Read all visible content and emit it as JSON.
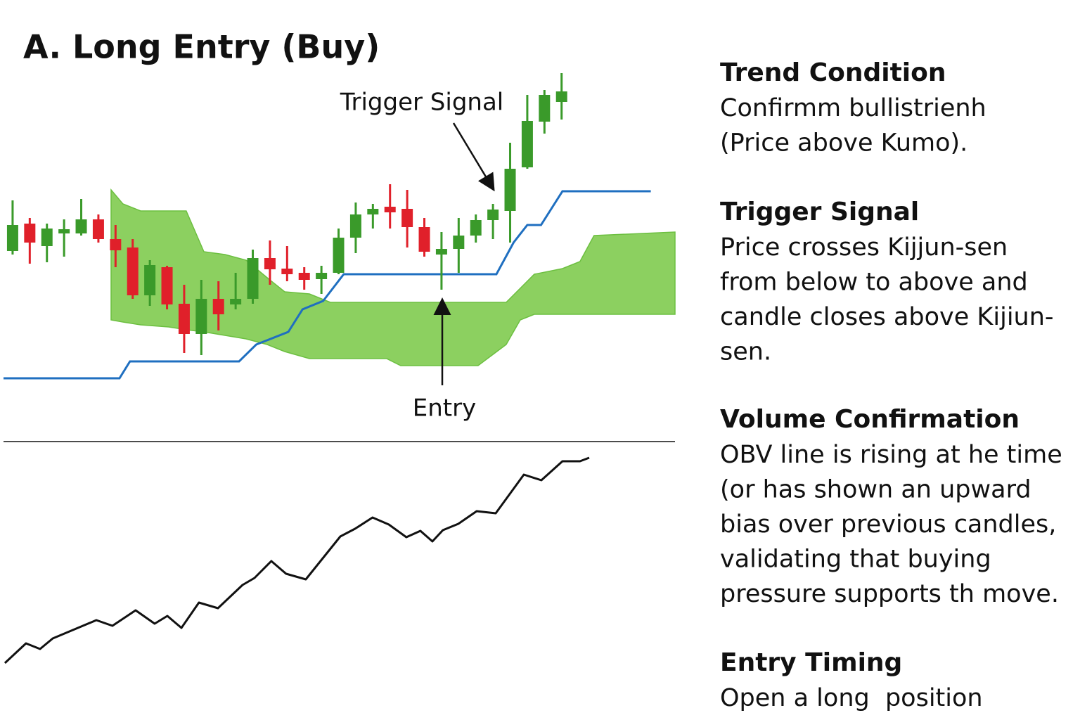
{
  "title": "A. Long Entry (Buy)",
  "chart_data": [
    {
      "type": "candlestick",
      "annotations": [
        "Trigger Signal",
        "Entry"
      ],
      "xlim": [
        -0.53,
        38.61
      ],
      "ylim": [
        0,
        480
      ],
      "up_color": "#3a9a2a",
      "down_color": "#e0202a",
      "x": [
        0,
        1,
        2,
        3,
        4,
        5,
        6,
        7,
        8,
        9,
        10,
        11,
        12,
        13,
        14,
        15,
        16,
        17,
        18,
        19,
        20,
        21,
        22,
        23,
        24,
        25,
        26,
        27,
        28,
        29,
        30,
        31,
        32
      ],
      "open": [
        203,
        242,
        210,
        228,
        228,
        248,
        220,
        208,
        140,
        180,
        128,
        85,
        135,
        127,
        135,
        193,
        178,
        172,
        163,
        172,
        222,
        255,
        266,
        263,
        237,
        198,
        206,
        225,
        247,
        260,
        322,
        387,
        415
      ],
      "high": [
        275,
        250,
        242,
        248,
        277,
        255,
        240,
        220,
        190,
        182,
        155,
        162,
        160,
        172,
        205,
        218,
        210,
        180,
        182,
        235,
        272,
        270,
        298,
        290,
        250,
        230,
        250,
        255,
        270,
        357,
        425,
        432,
        456
      ],
      "low": [
        198,
        185,
        187,
        195,
        225,
        215,
        180,
        135,
        125,
        120,
        58,
        55,
        90,
        120,
        128,
        155,
        160,
        148,
        142,
        170,
        200,
        235,
        235,
        208,
        195,
        148,
        172,
        215,
        220,
        215,
        320,
        370,
        390
      ],
      "close": [
        240,
        215,
        235,
        234,
        248,
        220,
        204,
        140,
        183,
        127,
        85,
        135,
        113,
        135,
        193,
        177,
        170,
        162,
        172,
        222,
        255,
        263,
        258,
        237,
        202,
        206,
        225,
        247,
        262,
        320,
        388,
        425,
        430
      ],
      "kijun": {
        "color": "#1f6fc0",
        "x": [
          -0.53,
          6.23,
          6.84,
          13.2,
          14.2,
          16.07,
          16.9,
          18.1,
          19.3,
          28.2,
          29.2,
          30.0,
          30.8,
          32.05,
          37.2
        ],
        "values": [
          22,
          22,
          46,
          46,
          70,
          88,
          120,
          132,
          170,
          170,
          215,
          240,
          240,
          288,
          288
        ]
      },
      "cloud": {
        "color": "#8cd060",
        "x": [
          5.74,
          6.43,
          7.46,
          9.1,
          10.12,
          11.15,
          12.38,
          13.61,
          14.84,
          15.86,
          17.3,
          18.52,
          21.8,
          22.62,
          27.13,
          27.95,
          28.77,
          29.59,
          30.41,
          32.05,
          33.07,
          33.89,
          38.61
        ],
        "upper": [
          290,
          270,
          260,
          260,
          260,
          202,
          198,
          190,
          165,
          145,
          142,
          130,
          130,
          130,
          130,
          130,
          130,
          150,
          170,
          178,
          188,
          225,
          230
        ],
        "lower": [
          105,
          102,
          98,
          95,
          91,
          88,
          83,
          78,
          70,
          60,
          50,
          50,
          50,
          40,
          40,
          55,
          70,
          105,
          113,
          113,
          113,
          113,
          113
        ]
      }
    },
    {
      "type": "line",
      "color": "#111111",
      "xlim": [
        -0.53,
        38.61
      ],
      "ylim": [
        0,
        320
      ],
      "x": [
        -0.45,
        0.78,
        1.6,
        2.34,
        4.88,
        5.82,
        7.17,
        8.28,
        9.02,
        9.84,
        10.86,
        11.97,
        13.4,
        14.1,
        15.08,
        15.94,
        17.09,
        19.1,
        19.96,
        20.98,
        21.93,
        22.95,
        23.77,
        24.47,
        25.08,
        25.98,
        27.05,
        28.16,
        29.8,
        30.82,
        32.05,
        33.07,
        33.61
      ],
      "values": [
        17,
        45,
        37,
        52,
        78,
        70,
        92,
        73,
        84,
        67,
        103,
        95,
        128,
        138,
        162,
        144,
        136,
        197,
        208,
        224,
        214,
        196,
        205,
        190,
        206,
        215,
        233,
        230,
        285,
        277,
        304,
        304,
        309
      ]
    }
  ],
  "sections": [
    {
      "heading": "Trend Condition",
      "lines": [
        "Confirmm bullistrienh",
        "(Price above Kumo)."
      ]
    },
    {
      "heading": "Trigger Signal",
      "lines": [
        "Price crosses Kijjun-sen",
        "from below to above and",
        "candle closes above Kijiun-",
        "sen."
      ]
    },
    {
      "heading": "Volume Confirmation",
      "lines": [
        "OBV line is rising at he time",
        "(or has shown an upward",
        "bias over previous candles,",
        "validating that buying",
        "pressure supports th move."
      ]
    },
    {
      "heading": "Entry Timing",
      "lines": [
        "Open a long  position"
      ]
    }
  ]
}
